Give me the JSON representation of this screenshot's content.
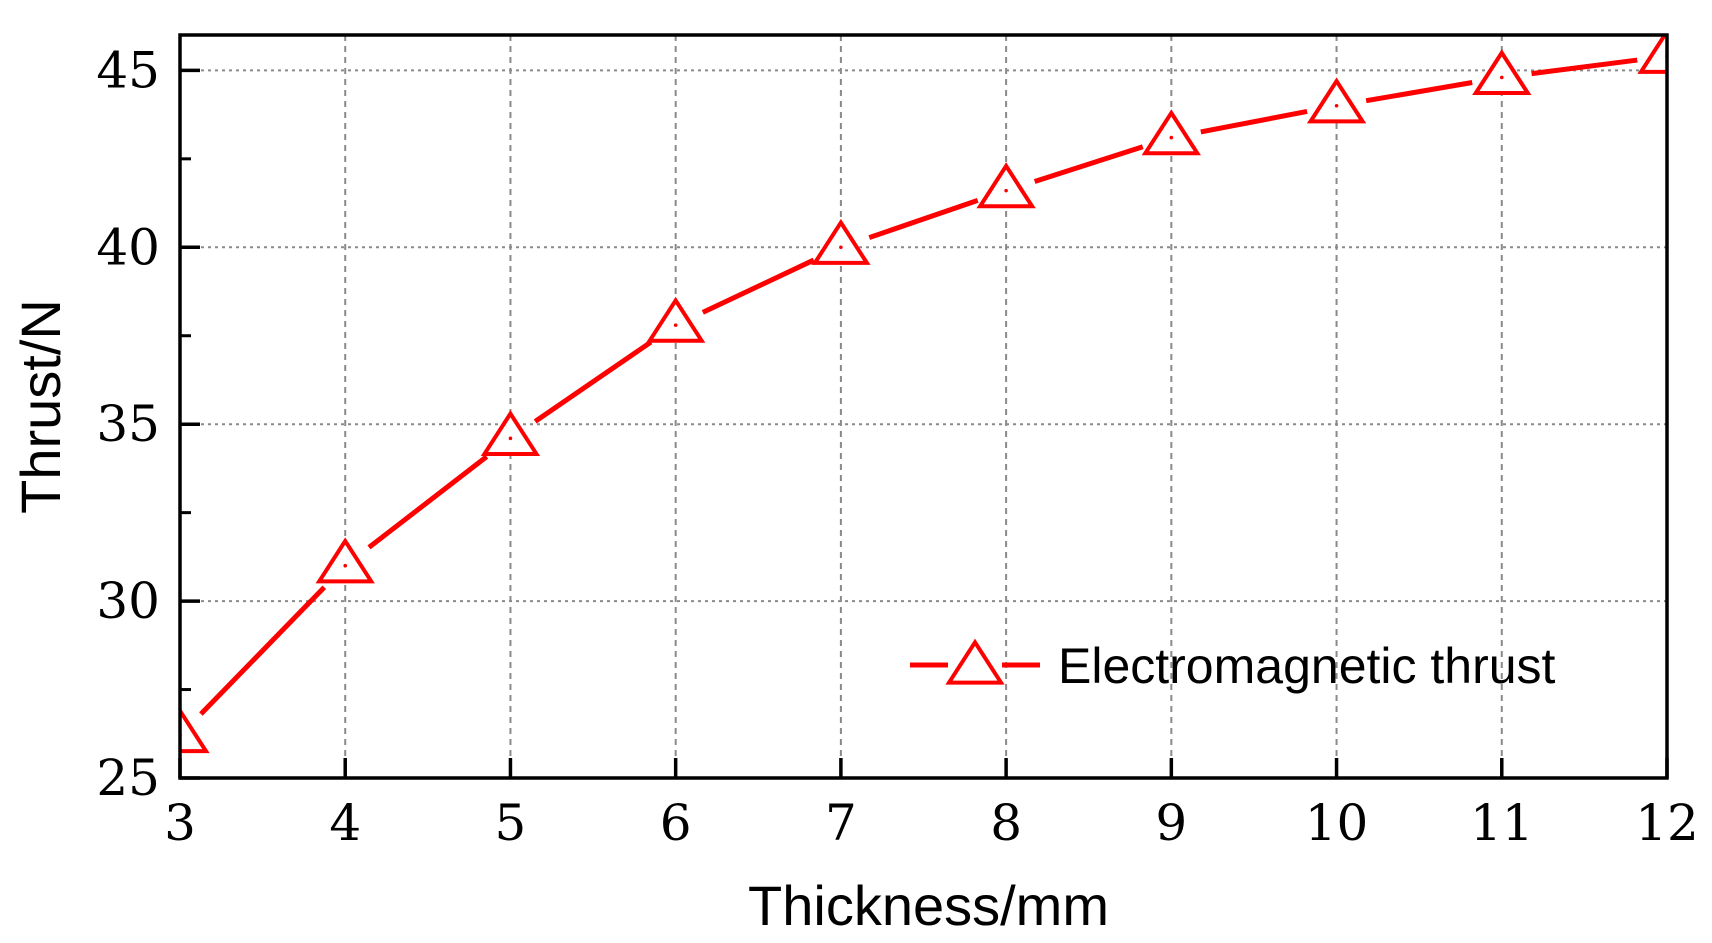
{
  "chart_data": {
    "type": "line",
    "title": "",
    "xlabel": "Thickness/mm",
    "ylabel": "Thrust/N",
    "xlim": [
      3,
      12
    ],
    "ylim": [
      25,
      46
    ],
    "x_ticks": [
      3,
      4,
      5,
      6,
      7,
      8,
      9,
      10,
      11,
      12
    ],
    "y_ticks": [
      25,
      30,
      35,
      40,
      45
    ],
    "grid": true,
    "legend_position": "bottom-right",
    "series": [
      {
        "name": "Electromagnetic thrust",
        "color": "#ff0000",
        "marker": "open-triangle",
        "x": [
          3,
          4,
          5,
          6,
          7,
          8,
          9,
          10,
          11,
          12
        ],
        "y": [
          26.2,
          31.0,
          34.6,
          37.8,
          40.0,
          41.6,
          43.1,
          44.0,
          44.8,
          45.4
        ]
      }
    ]
  }
}
